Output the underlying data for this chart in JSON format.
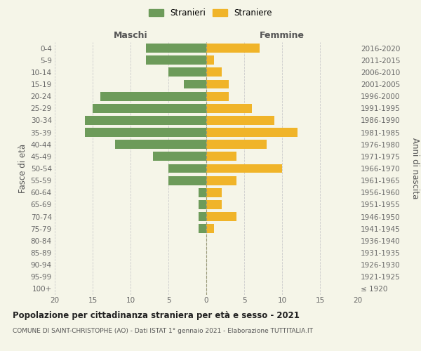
{
  "age_groups": [
    "100+",
    "95-99",
    "90-94",
    "85-89",
    "80-84",
    "75-79",
    "70-74",
    "65-69",
    "60-64",
    "55-59",
    "50-54",
    "45-49",
    "40-44",
    "35-39",
    "30-34",
    "25-29",
    "20-24",
    "15-19",
    "10-14",
    "5-9",
    "0-4"
  ],
  "birth_years": [
    "≤ 1920",
    "1921-1925",
    "1926-1930",
    "1931-1935",
    "1936-1940",
    "1941-1945",
    "1946-1950",
    "1951-1955",
    "1956-1960",
    "1961-1965",
    "1966-1970",
    "1971-1975",
    "1976-1980",
    "1981-1985",
    "1986-1990",
    "1991-1995",
    "1996-2000",
    "2001-2005",
    "2006-2010",
    "2011-2015",
    "2016-2020"
  ],
  "maschi": [
    0,
    0,
    0,
    0,
    0,
    1,
    1,
    1,
    1,
    5,
    5,
    7,
    12,
    16,
    16,
    15,
    14,
    3,
    5,
    8,
    8
  ],
  "femmine": [
    0,
    0,
    0,
    0,
    0,
    1,
    4,
    2,
    2,
    4,
    10,
    4,
    8,
    12,
    9,
    6,
    3,
    3,
    2,
    1,
    7
  ],
  "maschi_color": "#6d9b5a",
  "femmine_color": "#f0b429",
  "xlim": 20,
  "title": "Popolazione per cittadinanza straniera per età e sesso - 2021",
  "subtitle": "COMUNE DI SAINT-CHRISTOPHE (AO) - Dati ISTAT 1° gennaio 2021 - Elaborazione TUTTITALIA.IT",
  "ylabel_left": "Fasce di età",
  "ylabel_right": "Anni di nascita",
  "label_maschi": "Maschi",
  "label_femmine": "Femmine",
  "legend_stranieri": "Stranieri",
  "legend_straniere": "Straniere",
  "bg_color": "#f5f5e8",
  "grid_color": "#cccccc",
  "bar_height": 0.75
}
